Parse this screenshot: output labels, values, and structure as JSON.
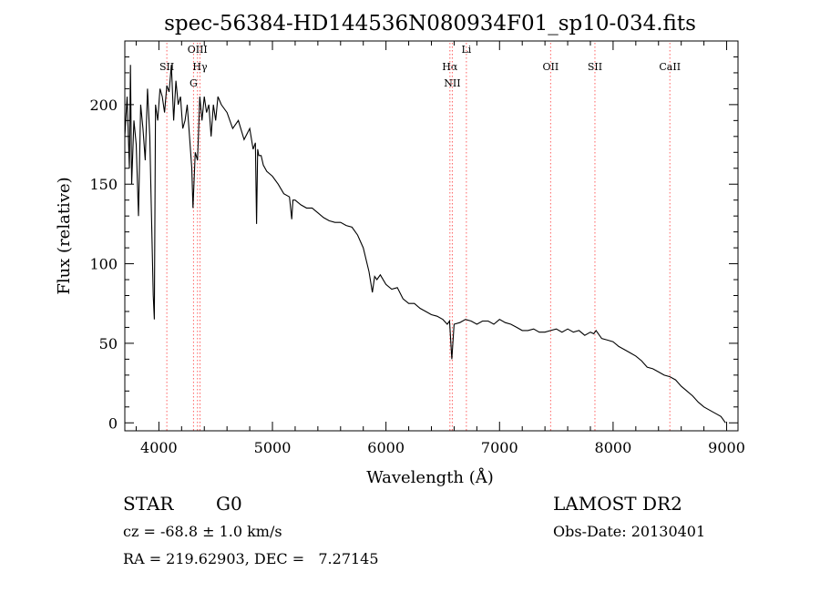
{
  "chart_data": {
    "type": "line",
    "title": "spec-56384-HD144536N080934F01_sp10-034.fits",
    "xlabel": "Wavelength (Å)",
    "ylabel": "Flux (relative)",
    "xlim": [
      3700,
      9100
    ],
    "ylim": [
      -5,
      240
    ],
    "grid": false,
    "x_ticks": [
      4000,
      5000,
      6000,
      7000,
      8000,
      9000
    ],
    "x_tick_labels": [
      "4000",
      "5000",
      "6000",
      "7000",
      "8000",
      "9000"
    ],
    "y_ticks": [
      0,
      50,
      100,
      150,
      200
    ],
    "y_tick_labels": [
      "0",
      "50",
      "100",
      "150",
      "200"
    ],
    "series": [
      {
        "x": [
          3700,
          3720,
          3740,
          3750,
          3760,
          3780,
          3800,
          3820,
          3840,
          3860,
          3880,
          3900,
          3920,
          3930,
          3950,
          3960,
          3970,
          3990,
          4010,
          4030,
          4050,
          4070,
          4090,
          4110,
          4130,
          4150,
          4170,
          4190,
          4210,
          4230,
          4250,
          4270,
          4290,
          4300,
          4320,
          4340,
          4360,
          4380,
          4400,
          4420,
          4440,
          4460,
          4480,
          4500,
          4520,
          4550,
          4600,
          4650,
          4700,
          4750,
          4800,
          4830,
          4850,
          4860,
          4870,
          4880,
          4900,
          4920,
          4950,
          5000,
          5050,
          5100,
          5150,
          5170,
          5180,
          5200,
          5250,
          5300,
          5350,
          5400,
          5450,
          5500,
          5550,
          5600,
          5650,
          5700,
          5750,
          5800,
          5850,
          5880,
          5900,
          5920,
          5950,
          6000,
          6050,
          6100,
          6150,
          6200,
          6250,
          6300,
          6350,
          6400,
          6450,
          6500,
          6540,
          6560,
          6580,
          6600,
          6650,
          6700,
          6750,
          6800,
          6850,
          6900,
          6950,
          7000,
          7050,
          7100,
          7150,
          7200,
          7250,
          7300,
          7350,
          7400,
          7450,
          7500,
          7550,
          7600,
          7650,
          7700,
          7750,
          7800,
          7830,
          7850,
          7900,
          7950,
          8000,
          8050,
          8100,
          8150,
          8200,
          8250,
          8300,
          8350,
          8400,
          8450,
          8500,
          8550,
          8600,
          8650,
          8700,
          8750,
          8800,
          8850,
          8900,
          8950,
          8990
        ],
        "y": [
          180,
          205,
          160,
          225,
          150,
          190,
          175,
          130,
          200,
          185,
          165,
          210,
          180,
          145,
          80,
          65,
          200,
          190,
          210,
          205,
          195,
          212,
          208,
          225,
          190,
          215,
          200,
          205,
          185,
          190,
          200,
          180,
          160,
          135,
          170,
          165,
          205,
          190,
          205,
          195,
          200,
          180,
          200,
          190,
          205,
          200,
          195,
          185,
          190,
          178,
          185,
          172,
          176,
          125,
          172,
          168,
          168,
          162,
          158,
          155,
          150,
          144,
          142,
          128,
          140,
          140,
          137,
          135,
          135,
          132,
          129,
          127,
          126,
          126,
          124,
          123,
          118,
          110,
          95,
          82,
          92,
          90,
          93,
          87,
          84,
          85,
          78,
          75,
          75,
          72,
          70,
          68,
          67,
          65,
          62,
          64,
          40,
          62,
          63,
          65,
          64,
          62,
          64,
          64,
          62,
          65,
          63,
          62,
          60,
          58,
          58,
          59,
          57,
          57,
          58,
          59,
          57,
          59,
          57,
          58,
          55,
          57,
          56,
          58,
          53,
          52,
          51,
          48,
          46,
          44,
          42,
          39,
          35,
          34,
          32,
          30,
          29,
          27,
          23,
          20,
          17,
          13,
          10,
          8,
          6,
          4,
          0
        ]
      }
    ],
    "line_markers": [
      {
        "label": "SII",
        "x": 4070
      },
      {
        "label": "G",
        "x": 4305
      },
      {
        "label": "OIII",
        "x": 4340
      },
      {
        "label": "Hγ",
        "x": 4362
      },
      {
        "label": "Hα",
        "x": 6563
      },
      {
        "label": "NII",
        "x": 6584
      },
      {
        "label": "Li",
        "x": 6708
      },
      {
        "label": "OII",
        "x": 7450
      },
      {
        "label": "SII",
        "x": 7840
      },
      {
        "label": "CaII",
        "x": 8500
      }
    ]
  },
  "info": {
    "object_type": "STAR",
    "subclass": "G0",
    "survey": "LAMOST DR2",
    "redshift": "cz = -68.8 ± 1.0 km/s",
    "obs_date": "Obs-Date: 20130401",
    "coords": "RA = 219.62903, DEC =   7.27145"
  },
  "colors": {
    "line": "#000000",
    "marker": "#ff6060",
    "text": "#000000"
  }
}
